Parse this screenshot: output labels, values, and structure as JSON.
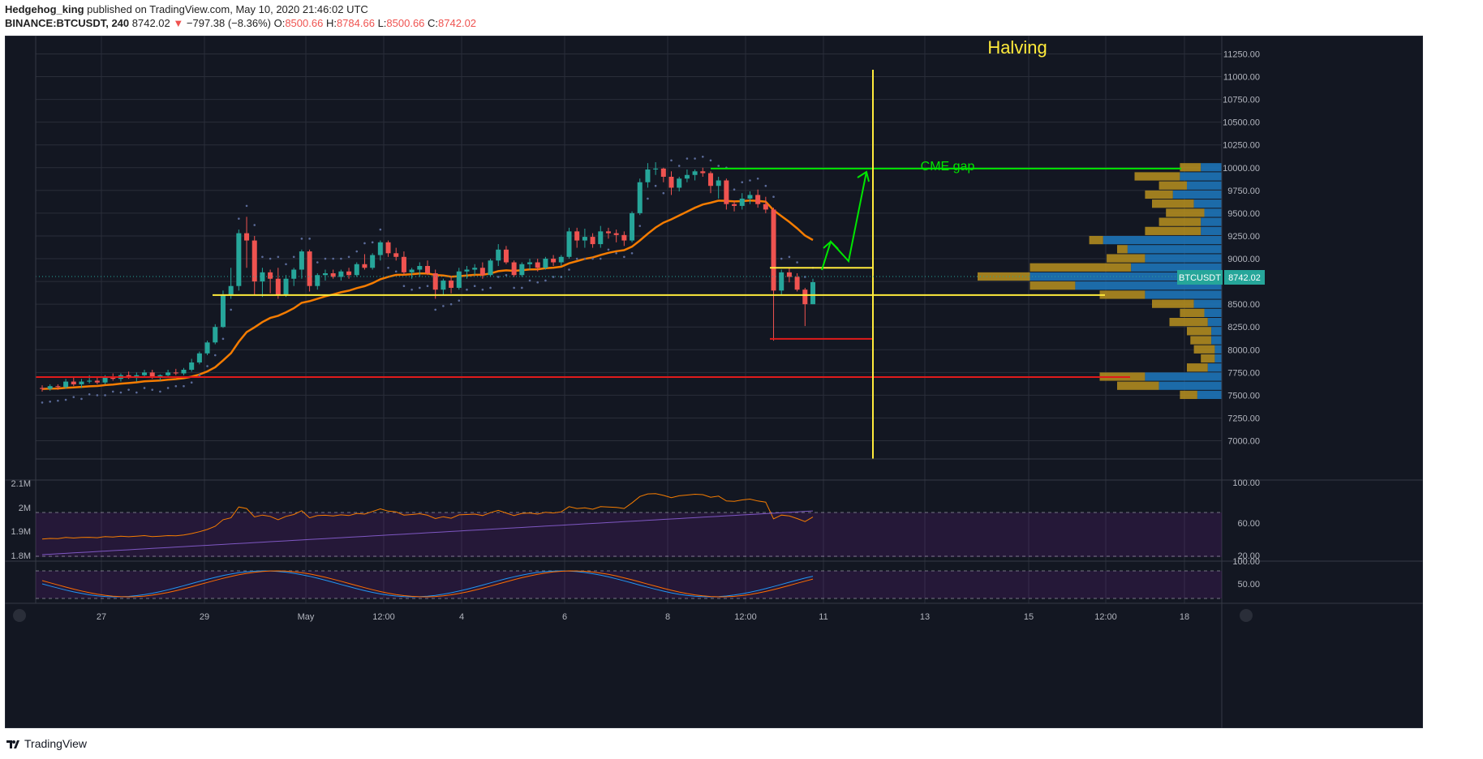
{
  "header": {
    "publisher": "Hedgehog_king",
    "published_text": "published on TradingView.com, May 10, 2020 21:46:02 UTC",
    "symbol": "BINANCE:BTCUSDT, 240",
    "last": "8742.02",
    "change": "−797.38 (−8.36%)",
    "o_label": "O:",
    "o_val": "8500.66",
    "h_label": "H:",
    "h_val": "8784.66",
    "l_label": "L:",
    "l_val": "8500.66",
    "c_label": "C:",
    "c_val": "8742.02"
  },
  "footer": {
    "brand": "TradingView"
  },
  "colors": {
    "bg": "#131722",
    "up": "#26a69a",
    "down": "#ef5350",
    "ema": "#f57c00",
    "yellow": "#ffeb3b",
    "green": "#00e600",
    "red": "#e01b1b"
  },
  "chart_data": {
    "type": "candlestick",
    "symbol": "BINANCE:BTCUSDT",
    "interval": "240",
    "x_ticks": [
      "27",
      "29",
      "May",
      "12:00",
      "4",
      "6",
      "8",
      "12:00",
      "11",
      "13",
      "15",
      "12:00",
      "18"
    ],
    "y_ticks": [
      "11250.00",
      "11000.00",
      "10750.00",
      "10500.00",
      "10250.00",
      "10000.00",
      "9750.00",
      "9500.00",
      "9250.00",
      "9000.00",
      "8750.00",
      "8500.00",
      "8250.00",
      "8000.00",
      "7750.00",
      "7500.00",
      "7250.00",
      "7000.00"
    ],
    "ylim": [
      6800,
      11450
    ],
    "price_label": "BTCUSDT",
    "price_value": "8742.02",
    "annotations": {
      "halving": "Halving",
      "cme_gap": "CME gap"
    },
    "levels": {
      "cme_gap": 9990,
      "support": 8600,
      "resistance": 8900,
      "low_line": 8120,
      "long_support": 7700
    },
    "candles": [
      [
        7580,
        7610,
        7540,
        7570
      ],
      [
        7570,
        7620,
        7550,
        7600
      ],
      [
        7600,
        7620,
        7560,
        7590
      ],
      [
        7590,
        7680,
        7570,
        7650
      ],
      [
        7650,
        7700,
        7600,
        7620
      ],
      [
        7620,
        7680,
        7580,
        7650
      ],
      [
        7650,
        7720,
        7630,
        7660
      ],
      [
        7660,
        7700,
        7620,
        7640
      ],
      [
        7640,
        7720,
        7620,
        7700
      ],
      [
        7700,
        7740,
        7660,
        7680
      ],
      [
        7680,
        7740,
        7650,
        7720
      ],
      [
        7720,
        7760,
        7680,
        7690
      ],
      [
        7690,
        7750,
        7650,
        7720
      ],
      [
        7720,
        7780,
        7700,
        7750
      ],
      [
        7750,
        7780,
        7680,
        7700
      ],
      [
        7700,
        7730,
        7660,
        7720
      ],
      [
        7720,
        7780,
        7700,
        7750
      ],
      [
        7750,
        7790,
        7720,
        7740
      ],
      [
        7740,
        7800,
        7720,
        7780
      ],
      [
        7780,
        7900,
        7760,
        7860
      ],
      [
        7860,
        7980,
        7840,
        7960
      ],
      [
        7960,
        8100,
        7940,
        8080
      ],
      [
        8080,
        8280,
        8060,
        8250
      ],
      [
        8250,
        8650,
        8240,
        8600
      ],
      [
        8600,
        8900,
        8560,
        8700
      ],
      [
        8700,
        9320,
        8650,
        9280
      ],
      [
        9280,
        9460,
        8900,
        9200
      ],
      [
        9200,
        9250,
        8600,
        8750
      ],
      [
        8750,
        8900,
        8580,
        8850
      ],
      [
        8850,
        8880,
        8620,
        8780
      ],
      [
        8780,
        8900,
        8560,
        8600
      ],
      [
        8600,
        8820,
        8580,
        8780
      ],
      [
        8780,
        8900,
        8700,
        8880
      ],
      [
        8880,
        9100,
        8780,
        9080
      ],
      [
        9080,
        9100,
        8640,
        8700
      ],
      [
        8700,
        8840,
        8660,
        8820
      ],
      [
        8820,
        8880,
        8760,
        8840
      ],
      [
        8840,
        8880,
        8780,
        8800
      ],
      [
        8800,
        8880,
        8760,
        8860
      ],
      [
        8860,
        8900,
        8780,
        8820
      ],
      [
        8820,
        8960,
        8800,
        8940
      ],
      [
        8940,
        9050,
        8880,
        8900
      ],
      [
        8900,
        9060,
        8880,
        9040
      ],
      [
        9040,
        9200,
        8980,
        9180
      ],
      [
        9180,
        9200,
        9020,
        9060
      ],
      [
        9060,
        9120,
        8980,
        9020
      ],
      [
        9020,
        9080,
        8820,
        8850
      ],
      [
        8850,
        8900,
        8780,
        8880
      ],
      [
        8880,
        8960,
        8800,
        8920
      ],
      [
        8920,
        8980,
        8820,
        8840
      ],
      [
        8840,
        8880,
        8560,
        8660
      ],
      [
        8660,
        8780,
        8600,
        8760
      ],
      [
        8760,
        8800,
        8620,
        8680
      ],
      [
        8680,
        8900,
        8660,
        8860
      ],
      [
        8860,
        8920,
        8780,
        8880
      ],
      [
        8880,
        8940,
        8820,
        8900
      ],
      [
        8900,
        8960,
        8780,
        8820
      ],
      [
        8820,
        9000,
        8800,
        8980
      ],
      [
        8980,
        9160,
        8920,
        9100
      ],
      [
        9100,
        9140,
        8940,
        8960
      ],
      [
        8960,
        8980,
        8800,
        8820
      ],
      [
        8820,
        8960,
        8800,
        8940
      ],
      [
        8940,
        9000,
        8880,
        8960
      ],
      [
        8960,
        9000,
        8860,
        8900
      ],
      [
        8900,
        9020,
        8880,
        9000
      ],
      [
        9000,
        9040,
        8920,
        8960
      ],
      [
        8960,
        9040,
        8920,
        9020
      ],
      [
        9020,
        9340,
        9000,
        9300
      ],
      [
        9300,
        9340,
        9120,
        9200
      ],
      [
        9200,
        9330,
        9120,
        9240
      ],
      [
        9240,
        9280,
        9120,
        9160
      ],
      [
        9160,
        9360,
        9120,
        9300
      ],
      [
        9300,
        9340,
        9220,
        9280
      ],
      [
        9280,
        9320,
        9180,
        9260
      ],
      [
        9260,
        9300,
        9140,
        9200
      ],
      [
        9200,
        9520,
        9180,
        9500
      ],
      [
        9500,
        9880,
        9480,
        9840
      ],
      [
        9840,
        10050,
        9780,
        9980
      ],
      [
        9980,
        10060,
        9920,
        9990
      ],
      [
        9990,
        10000,
        9840,
        9900
      ],
      [
        9900,
        9960,
        9700,
        9780
      ],
      [
        9780,
        9900,
        9740,
        9880
      ],
      [
        9880,
        9980,
        9840,
        9920
      ],
      [
        9920,
        9980,
        9860,
        9960
      ],
      [
        9960,
        10000,
        9900,
        9940
      ],
      [
        9940,
        9960,
        9720,
        9800
      ],
      [
        9800,
        9900,
        9660,
        9860
      ],
      [
        9860,
        9880,
        9540,
        9600
      ],
      [
        9600,
        9640,
        9520,
        9580
      ],
      [
        9580,
        9720,
        9540,
        9660
      ],
      [
        9660,
        9740,
        9600,
        9700
      ],
      [
        9700,
        9760,
        9560,
        9600
      ],
      [
        9600,
        9680,
        9500,
        9540
      ],
      [
        9540,
        9560,
        8100,
        8650
      ],
      [
        8650,
        8880,
        8600,
        8850
      ],
      [
        8850,
        8900,
        8740,
        8800
      ],
      [
        8800,
        8840,
        8640,
        8660
      ],
      [
        8660,
        8680,
        8260,
        8500
      ],
      [
        8500,
        8780,
        8500,
        8742
      ]
    ]
  }
}
